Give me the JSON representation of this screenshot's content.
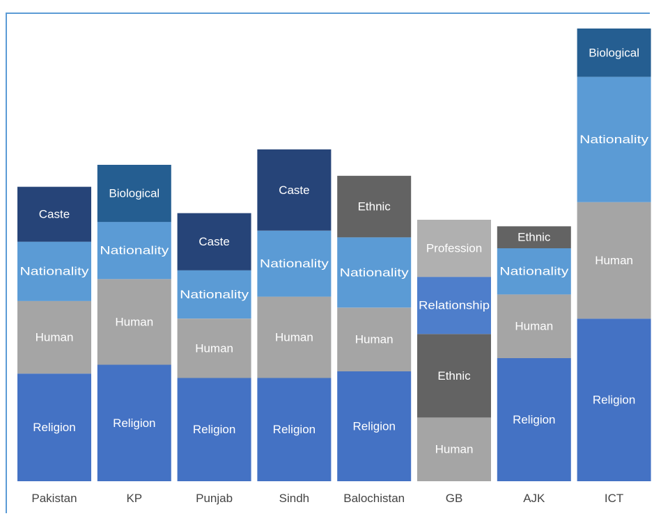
{
  "chart_data": {
    "type": "bar",
    "stacked": true,
    "title": "",
    "xlabel": "",
    "ylabel": "",
    "legend": "none",
    "grid": false,
    "ylim": [
      0,
      100
    ],
    "categories": [
      "Pakistan",
      "KP",
      "Punjab",
      "Sindh",
      "Balochistan",
      "GB",
      "AJK",
      "ICT"
    ],
    "stacks": [
      {
        "category": "Pakistan",
        "segments": [
          {
            "label": "Religion",
            "value": 24.5,
            "color": "#4472c4"
          },
          {
            "label": "Human",
            "value": 16.5,
            "color": "#a5a5a5"
          },
          {
            "label": "Nationality",
            "value": 13.5,
            "color": "#5b9bd5"
          },
          {
            "label": "Caste",
            "value": 12.5,
            "color": "#264478"
          }
        ]
      },
      {
        "category": "KP",
        "segments": [
          {
            "label": "Religion",
            "value": 26.5,
            "color": "#4472c4"
          },
          {
            "label": "Human",
            "value": 19.5,
            "color": "#a5a5a5"
          },
          {
            "label": "Nationality",
            "value": 13,
            "color": "#5b9bd5"
          },
          {
            "label": "Biological",
            "value": 13,
            "color": "#255e91"
          }
        ]
      },
      {
        "category": "Punjab",
        "segments": [
          {
            "label": "Religion",
            "value": 23.5,
            "color": "#4472c4"
          },
          {
            "label": "Human",
            "value": 13.5,
            "color": "#a5a5a5"
          },
          {
            "label": "Nationality",
            "value": 11,
            "color": "#5b9bd5"
          },
          {
            "label": "Caste",
            "value": 13,
            "color": "#264478"
          }
        ]
      },
      {
        "category": "Sindh",
        "segments": [
          {
            "label": "Religion",
            "value": 23.5,
            "color": "#4472c4"
          },
          {
            "label": "Human",
            "value": 18.5,
            "color": "#a5a5a5"
          },
          {
            "label": "Nationality",
            "value": 15,
            "color": "#5b9bd5"
          },
          {
            "label": "Caste",
            "value": 18.5,
            "color": "#264478"
          }
        ]
      },
      {
        "category": "Balochistan",
        "segments": [
          {
            "label": "Religion",
            "value": 25,
            "color": "#4472c4"
          },
          {
            "label": "Human",
            "value": 14.5,
            "color": "#a5a5a5"
          },
          {
            "label": "Nationality",
            "value": 16,
            "color": "#5b9bd5"
          },
          {
            "label": "Ethnic",
            "value": 14,
            "color": "#636363"
          }
        ]
      },
      {
        "category": "GB",
        "segments": [
          {
            "label": "Human",
            "value": 14.5,
            "color": "#a5a5a5"
          },
          {
            "label": "Ethnic",
            "value": 19,
            "color": "#636363"
          },
          {
            "label": "Relationship",
            "value": 13,
            "color": "#4e7ecb"
          },
          {
            "label": "Profession",
            "value": 13,
            "color": "#b0b0b0"
          }
        ]
      },
      {
        "category": "AJK",
        "segments": [
          {
            "label": "Religion",
            "value": 28,
            "color": "#4472c4"
          },
          {
            "label": "Human",
            "value": 14.5,
            "color": "#a5a5a5"
          },
          {
            "label": "Nationality",
            "value": 10.5,
            "color": "#5b9bd5"
          },
          {
            "label": "Ethnic",
            "value": 5,
            "color": "#636363"
          }
        ]
      },
      {
        "category": "ICT",
        "segments": [
          {
            "label": "Religion",
            "value": 37,
            "color": "#4472c4"
          },
          {
            "label": "Human",
            "value": 26.5,
            "color": "#a5a5a5"
          },
          {
            "label": "Nationality",
            "value": 28.5,
            "color": "#5b9bd5"
          },
          {
            "label": "Biological",
            "value": 11,
            "color": "#255e91"
          }
        ]
      }
    ]
  }
}
